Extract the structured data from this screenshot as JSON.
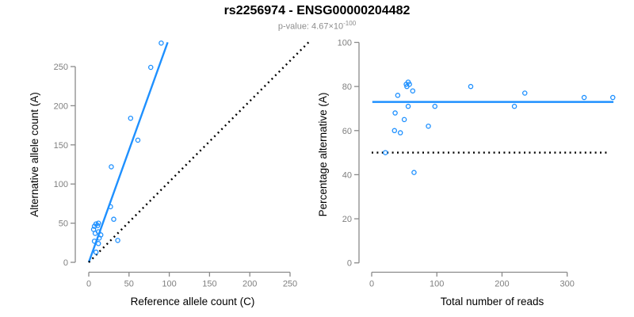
{
  "header": {
    "title": "rs2256974 - ENSG00000204482",
    "subtitle_prefix": "p-value: 4.67×10",
    "subtitle_exponent": "-100"
  },
  "colors": {
    "point": "#1E90FF",
    "regression_line": "#1E90FF",
    "dotted_line": "#000000",
    "axis": "#8a8a8a",
    "tick_label": "#7f7f7f",
    "axis_title": "#000000",
    "title": "#000000",
    "subtitle": "#8c8c8c"
  },
  "chart_data": [
    {
      "type": "scatter",
      "panel": "left",
      "xlabel": "Reference allele count (C)",
      "ylabel": "Alternative allele count (A)",
      "x_ticks": [
        0,
        50,
        100,
        150,
        200,
        250
      ],
      "y_ticks": [
        0,
        50,
        100,
        150,
        200,
        250
      ],
      "xlim": [
        0,
        275
      ],
      "ylim": [
        0,
        285
      ],
      "grid": false,
      "legend": false,
      "points": [
        [
          90,
          280
        ],
        [
          77,
          249
        ],
        [
          52,
          184
        ],
        [
          61,
          156
        ],
        [
          28,
          122
        ],
        [
          27,
          71
        ],
        [
          31,
          55
        ],
        [
          9,
          49
        ],
        [
          12,
          50
        ],
        [
          7,
          46
        ],
        [
          11,
          47
        ],
        [
          6,
          42
        ],
        [
          12,
          39
        ],
        [
          8,
          37
        ],
        [
          15,
          35
        ],
        [
          13,
          31
        ],
        [
          7,
          27
        ],
        [
          12,
          24
        ],
        [
          36,
          28
        ],
        [
          9,
          13
        ]
      ],
      "lines": [
        {
          "name": "regression-line",
          "style": "solid",
          "color_key": "regression_line",
          "from": [
            0,
            0
          ],
          "to": [
            98,
            281
          ]
        },
        {
          "name": "identity-line",
          "style": "dotted",
          "color_key": "dotted_line",
          "from": [
            0,
            0
          ],
          "to": [
            273,
            281
          ]
        }
      ]
    },
    {
      "type": "scatter",
      "panel": "right",
      "xlabel": "Total number of reads",
      "ylabel": "Percentage alternative (A)",
      "x_ticks": [
        0,
        100,
        200,
        300
      ],
      "y_ticks": [
        0,
        20,
        40,
        60,
        80,
        100
      ],
      "xlim": [
        0,
        372
      ],
      "ylim": [
        0,
        100
      ],
      "grid": false,
      "legend": false,
      "points": [
        [
          40,
          76
        ],
        [
          53,
          81
        ],
        [
          56,
          82
        ],
        [
          58,
          81
        ],
        [
          54,
          80
        ],
        [
          63,
          78
        ],
        [
          56,
          71
        ],
        [
          36,
          68
        ],
        [
          50,
          65
        ],
        [
          35,
          60
        ],
        [
          44,
          59
        ],
        [
          87,
          62
        ],
        [
          97,
          71
        ],
        [
          152,
          80
        ],
        [
          219,
          71
        ],
        [
          235,
          77
        ],
        [
          326,
          75
        ],
        [
          370,
          75
        ],
        [
          21,
          50
        ],
        [
          65,
          41
        ]
      ],
      "lines": [
        {
          "name": "mean-percentage-line",
          "style": "solid",
          "color_key": "regression_line",
          "y": 73,
          "from_x": 1,
          "to_x": 371
        },
        {
          "name": "fifty-percent-line",
          "style": "dotted",
          "color_key": "dotted_line",
          "y": 50,
          "from_x": 0,
          "to_x": 365
        }
      ]
    }
  ]
}
